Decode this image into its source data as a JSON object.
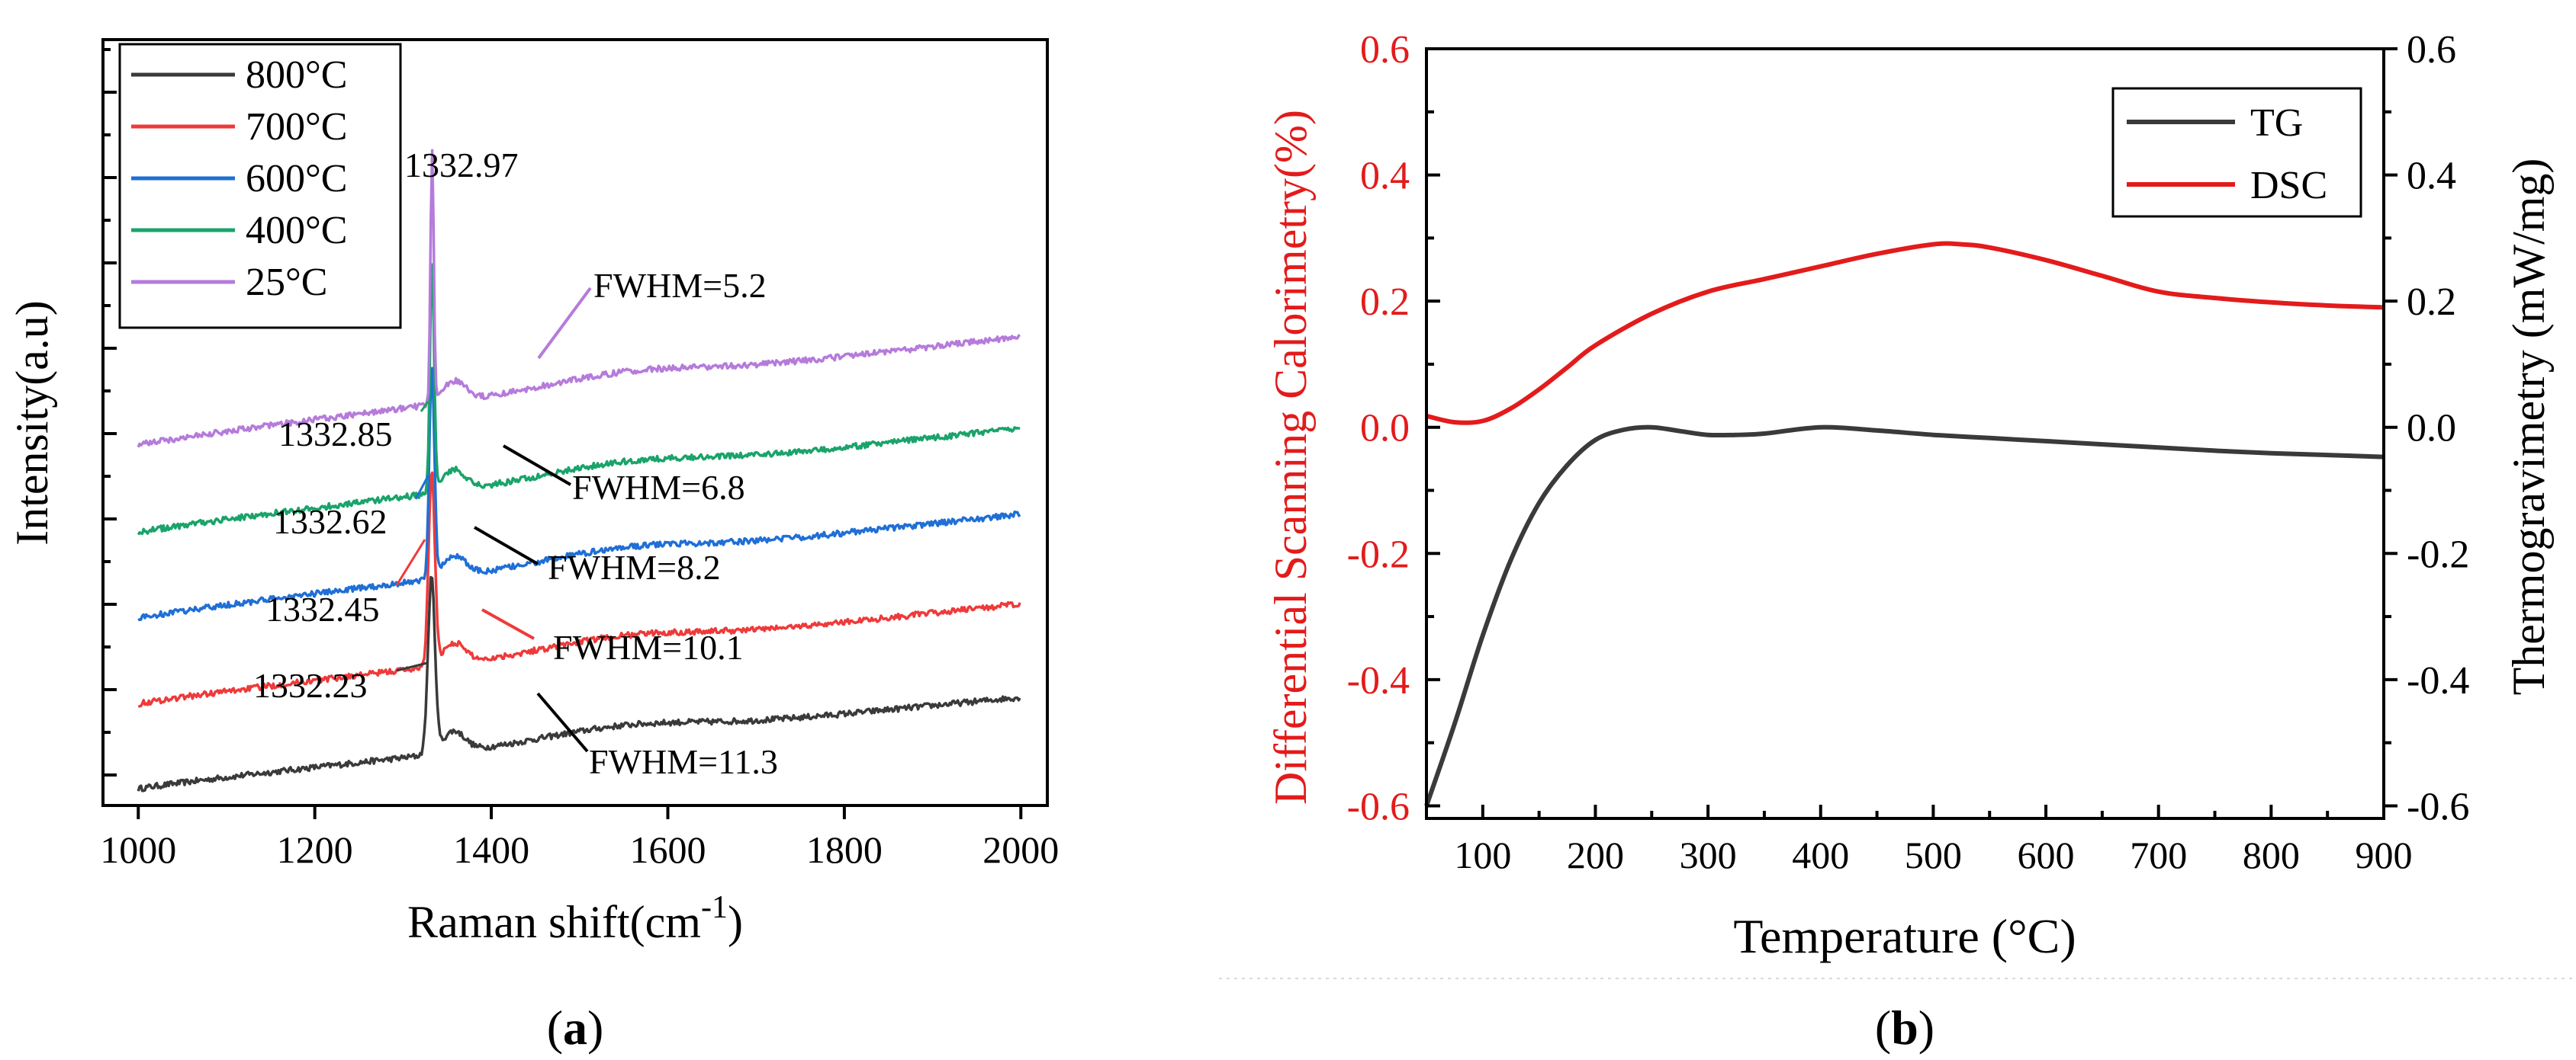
{
  "colors": {
    "t800": "#3a3a3a",
    "t700": "#ef3a3a",
    "t600": "#1f6fd6",
    "t400": "#1aa36a",
    "t25": "#b57bdb",
    "tg": "#3a3a3a",
    "dsc": "#e31b1b",
    "red_text": "#e31b1b"
  },
  "panel_a": {
    "caption": "a",
    "chart_data": {
      "type": "line",
      "title": "",
      "xlabel": "Raman shift(cm",
      "xlabel_sup": "-1",
      "xlabel_close": ")",
      "ylabel": "Intensity(a.u)",
      "xlim": [
        960,
        2030
      ],
      "ylim": [
        0,
        9.2
      ],
      "x_ticks": [
        1000,
        1200,
        1400,
        1600,
        1800,
        2000
      ],
      "legend_position": "top-left",
      "series": [
        {
          "key": "t800",
          "name": "800°C",
          "offset": 0.2,
          "peak_x": 1332.23,
          "peak_height": 2.1,
          "peak_width": 5.6,
          "end_rise": 1.1,
          "peak_label": "1332.23",
          "fwhm_label": "FWHM=11.3"
        },
        {
          "key": "t700",
          "name": "700°C",
          "offset": 1.22,
          "peak_x": 1332.45,
          "peak_height": 2.3,
          "peak_width": 5.0,
          "end_rise": 1.2,
          "peak_label": "1332.45",
          "fwhm_label": "FWHM=10.1"
        },
        {
          "key": "t600",
          "name": "600°C",
          "offset": 2.25,
          "peak_x": 1332.62,
          "peak_height": 2.5,
          "peak_width": 4.1,
          "end_rise": 1.25,
          "peak_label": "1332.62",
          "fwhm_label": "FWHM=8.2"
        },
        {
          "key": "t400",
          "name": "400°C",
          "offset": 3.28,
          "peak_x": 1332.85,
          "peak_height": 2.7,
          "peak_width": 3.4,
          "end_rise": 1.25,
          "peak_label": "1332.85",
          "fwhm_label": "FWHM=6.8"
        },
        {
          "key": "t25",
          "name": "25°C",
          "offset": 4.33,
          "peak_x": 1332.97,
          "peak_height": 3.0,
          "peak_width": 2.6,
          "end_rise": 1.3,
          "peak_label": "1332.97",
          "fwhm_label": "FWHM=5.2"
        }
      ]
    }
  },
  "panel_b": {
    "caption": "b",
    "chart_data": {
      "type": "line",
      "title": "",
      "xlabel": "Temperature (°C)",
      "ylabel_left": "Differential Scanning Calorimetry(%)",
      "ylabel_right": "Thermogravimetry (mW/mg)",
      "xlim": [
        50,
        900
      ],
      "ylim_left": [
        -0.62,
        0.6
      ],
      "ylim_right": [
        -0.62,
        0.6
      ],
      "x_ticks": [
        100,
        200,
        300,
        400,
        500,
        600,
        700,
        800,
        900
      ],
      "y_ticks": [
        -0.6,
        -0.4,
        -0.2,
        0.0,
        0.2,
        0.4,
        0.6
      ],
      "y_tick_labels": [
        "-0.6",
        "-0.4",
        "-0.2",
        "0.0",
        "0.2",
        "0.4",
        "0.6"
      ],
      "legend_position": "top-right",
      "series": [
        {
          "key": "tg",
          "name": "TG",
          "x": [
            50,
            75,
            100,
            125,
            150,
            175,
            200,
            225,
            250,
            275,
            300,
            325,
            350,
            400,
            450,
            500,
            550,
            600,
            650,
            700,
            750,
            800,
            850,
            900
          ],
          "y": [
            -0.6,
            -0.47,
            -0.33,
            -0.21,
            -0.12,
            -0.06,
            -0.02,
            -0.004,
            0.0,
            -0.006,
            -0.012,
            -0.012,
            -0.01,
            0.0,
            -0.005,
            -0.012,
            -0.017,
            -0.022,
            -0.027,
            -0.032,
            -0.037,
            -0.041,
            -0.044,
            -0.047
          ]
        },
        {
          "key": "dsc",
          "name": "DSC",
          "x": [
            50,
            75,
            100,
            125,
            150,
            175,
            200,
            250,
            300,
            350,
            400,
            450,
            500,
            525,
            550,
            600,
            650,
            700,
            750,
            800,
            850,
            900
          ],
          "y": [
            0.018,
            0.008,
            0.01,
            0.03,
            0.06,
            0.095,
            0.13,
            0.18,
            0.215,
            0.235,
            0.255,
            0.275,
            0.29,
            0.29,
            0.285,
            0.265,
            0.24,
            0.215,
            0.205,
            0.198,
            0.193,
            0.19
          ]
        }
      ]
    }
  }
}
